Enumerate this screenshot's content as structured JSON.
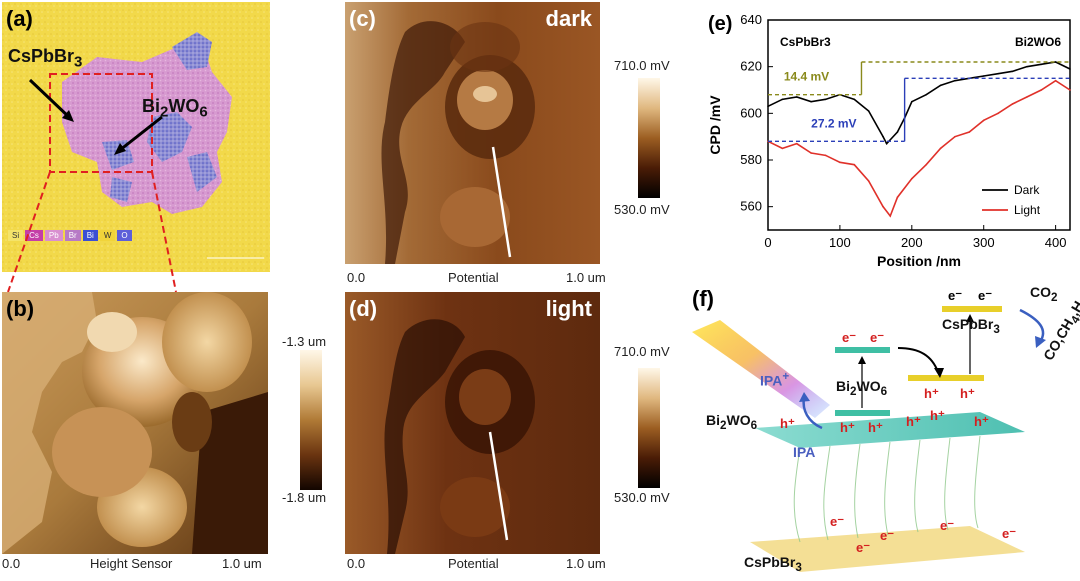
{
  "panel_a": {
    "label": "(a)",
    "material_1": "CsPbBr3",
    "material_2": "Bi2WO6",
    "legend": [
      "Si",
      "Cs",
      "Pb",
      "Br",
      "Bi",
      "W",
      "O"
    ],
    "legend_colors": [
      "#f4e36a",
      "#c43ea8",
      "#d98fd0",
      "#b77ac6",
      "#3b4fd4",
      "#f1d43a",
      "#5d5fd9"
    ]
  },
  "panel_b": {
    "label": "(b)",
    "colorbar_top": "-1.3 um",
    "colorbar_bottom": "-1.8 um",
    "axis_start": "0.0",
    "axis_title": "Height Sensor",
    "axis_end": "1.0 um"
  },
  "panel_c": {
    "label": "(c)",
    "condition": "dark",
    "colorbar_top": "710.0 mV",
    "colorbar_bottom": "530.0 mV",
    "axis_start": "0.0",
    "axis_title": "Potential",
    "axis_end": "1.0 um"
  },
  "panel_d": {
    "label": "(d)",
    "condition": "light",
    "colorbar_top": "710.0 mV",
    "colorbar_bottom": "530.0 mV",
    "axis_start": "0.0",
    "axis_title": "Potential",
    "axis_end": "1.0 um"
  },
  "panel_e": {
    "label": "(e)",
    "left_material": "CsPbBr3",
    "right_material": "Bi2WO6",
    "annotation_dark": "14.4 mV",
    "annotation_light": "27.2 mV",
    "colors": {
      "dark": "#000000",
      "light": "#e0312a",
      "dark_annot": "#8a8a1c",
      "light_annot": "#2b3fb8"
    }
  },
  "panel_f": {
    "label": "(f)",
    "electron": "e-",
    "hole": "h+",
    "bi2wo6_band": "Bi2WO6",
    "cspbbr3_band": "CsPbBr3",
    "bi2wo6_label": "Bi2WO6",
    "cspbbr3_label": "CsPbBr3",
    "ipa": "IPA",
    "ipa_plus": "IPA+",
    "co2": "CO2",
    "products": "CO,CH4,H2"
  },
  "chart_data": {
    "type": "line",
    "title": "",
    "xlabel": "Position /nm",
    "ylabel": "CPD /mV",
    "xlim": [
      0,
      420
    ],
    "ylim": [
      550,
      640
    ],
    "xticks": [
      0,
      100,
      200,
      300,
      400
    ],
    "yticks": [
      560,
      580,
      600,
      620,
      640
    ],
    "legend_position": "bottom-right",
    "series": [
      {
        "name": "Dark",
        "x": [
          0,
          20,
          40,
          60,
          80,
          100,
          120,
          140,
          160,
          165,
          180,
          190,
          200,
          220,
          240,
          260,
          280,
          300,
          320,
          340,
          360,
          380,
          400,
          420
        ],
        "values": [
          603,
          606,
          607,
          605,
          606,
          608,
          606,
          601,
          590,
          587,
          592,
          598,
          605,
          608,
          612,
          614,
          615,
          616,
          617,
          618,
          620,
          621,
          622,
          619
        ]
      },
      {
        "name": "Light",
        "x": [
          0,
          20,
          40,
          60,
          80,
          100,
          120,
          140,
          160,
          170,
          180,
          200,
          220,
          240,
          260,
          280,
          300,
          320,
          340,
          360,
          380,
          400,
          420
        ],
        "values": [
          588,
          585,
          587,
          583,
          582,
          579,
          578,
          571,
          560,
          556,
          564,
          572,
          578,
          585,
          590,
          592,
          597,
          600,
          604,
          607,
          610,
          614,
          610
        ]
      }
    ]
  }
}
